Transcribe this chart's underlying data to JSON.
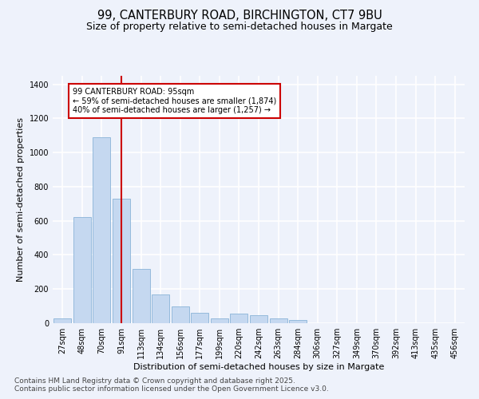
{
  "title_line1": "99, CANTERBURY ROAD, BIRCHINGTON, CT7 9BU",
  "title_line2": "Size of property relative to semi-detached houses in Margate",
  "xlabel": "Distribution of semi-detached houses by size in Margate",
  "ylabel": "Number of semi-detached properties",
  "categories": [
    "27sqm",
    "48sqm",
    "70sqm",
    "91sqm",
    "113sqm",
    "134sqm",
    "156sqm",
    "177sqm",
    "199sqm",
    "220sqm",
    "242sqm",
    "263sqm",
    "284sqm",
    "306sqm",
    "327sqm",
    "349sqm",
    "370sqm",
    "392sqm",
    "413sqm",
    "435sqm",
    "456sqm"
  ],
  "values": [
    30,
    620,
    1090,
    730,
    320,
    170,
    100,
    60,
    30,
    55,
    45,
    30,
    20,
    0,
    0,
    0,
    0,
    0,
    0,
    0,
    0
  ],
  "bar_color": "#c5d8f0",
  "bar_edge_color": "#8ab4d8",
  "vline_x_idx": 3,
  "vline_color": "#cc0000",
  "annotation_text": "99 CANTERBURY ROAD: 95sqm\n← 59% of semi-detached houses are smaller (1,874)\n40% of semi-detached houses are larger (1,257) →",
  "annotation_box_color": "#ffffff",
  "annotation_box_edge": "#cc0000",
  "ylim": [
    0,
    1450
  ],
  "yticks": [
    0,
    200,
    400,
    600,
    800,
    1000,
    1200,
    1400
  ],
  "footer_line1": "Contains HM Land Registry data © Crown copyright and database right 2025.",
  "footer_line2": "Contains public sector information licensed under the Open Government Licence v3.0.",
  "bg_color": "#eef2fb",
  "plot_bg_color": "#eef2fb",
  "grid_color": "#ffffff",
  "title_fontsize": 10.5,
  "subtitle_fontsize": 9,
  "axis_label_fontsize": 8,
  "tick_fontsize": 7,
  "annot_fontsize": 7,
  "footer_fontsize": 6.5
}
